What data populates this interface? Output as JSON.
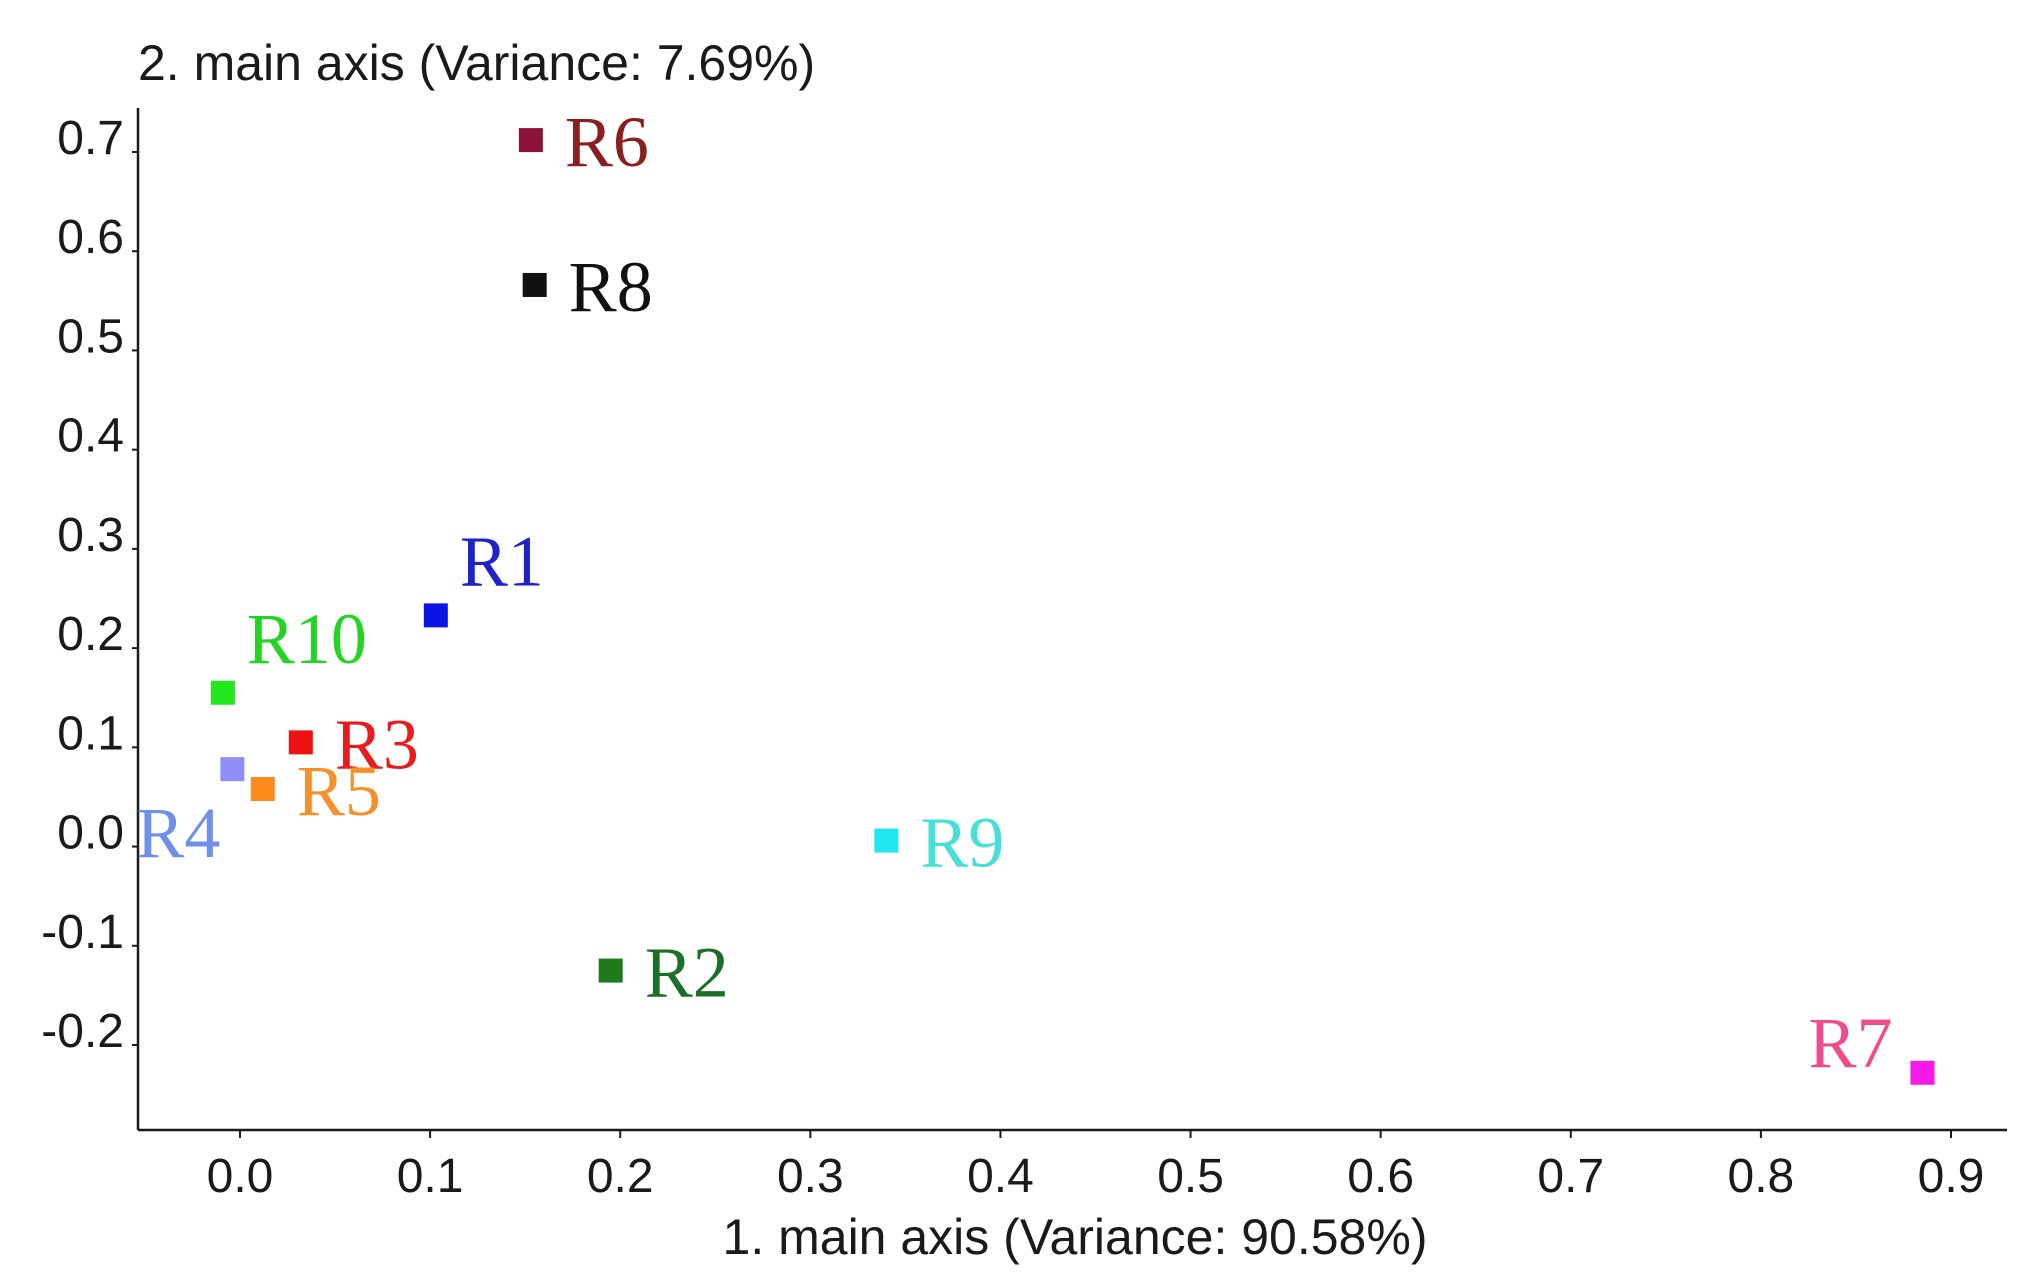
{
  "chart_data": {
    "type": "scatter",
    "title": "",
    "xlabel": "1. main axis (Variance: 90.58%)",
    "ylabel": "2. main axis (Variance: 7.69%)",
    "xlim": [
      -0.055,
      0.93
    ],
    "ylim": [
      -0.27,
      0.77
    ],
    "x_ticks": [
      0.0,
      0.1,
      0.2,
      0.3,
      0.4,
      0.5,
      0.6,
      0.7,
      0.8,
      0.9
    ],
    "x_tick_labels": [
      "0.0",
      "0.1",
      "0.2",
      "0.3",
      "0.4",
      "0.5",
      "0.6",
      "0.7",
      "0.8",
      "0.9"
    ],
    "y_ticks": [
      0.7,
      0.6,
      0.5,
      0.4,
      0.3,
      0.2,
      0.1,
      0.0,
      -0.1,
      -0.2
    ],
    "y_tick_labels": [
      "0.7",
      "0.6",
      "0.5",
      "0.4",
      "0.3",
      "0.2",
      "0.1",
      "0.0",
      "-0.1",
      "-0.2"
    ],
    "grid": false,
    "legend": "none",
    "points": [
      {
        "label": "R1",
        "x": 0.103,
        "y": 0.233,
        "marker_color": "#0a14e6",
        "label_color": "#1e22c8",
        "label_pos": "upper-right"
      },
      {
        "label": "R2",
        "x": 0.195,
        "y": -0.125,
        "marker_color": "#1d7a1d",
        "label_color": "#1d6e26",
        "label_pos": "right"
      },
      {
        "label": "R3",
        "x": 0.032,
        "y": 0.105,
        "marker_color": "#f01212",
        "label_color": "#e81c1c",
        "label_pos": "right"
      },
      {
        "label": "R4",
        "x": -0.004,
        "y": 0.078,
        "marker_color": "#8d8df5",
        "label_color": "#6f8fe8",
        "label_pos": "lower-left"
      },
      {
        "label": "R5",
        "x": 0.012,
        "y": 0.058,
        "marker_color": "#ff8a1c",
        "label_color": "#f7902a",
        "label_pos": "right"
      },
      {
        "label": "R6",
        "x": 0.153,
        "y": 0.712,
        "marker_color": "#8c1238",
        "label_color": "#8b1f1f",
        "label_pos": "right"
      },
      {
        "label": "R7",
        "x": 0.885,
        "y": -0.228,
        "marker_color": "#f51ae6",
        "label_color": "#f04c8c",
        "label_pos": "upper-left"
      },
      {
        "label": "R8",
        "x": 0.155,
        "y": 0.566,
        "marker_color": "#111111",
        "label_color": "#111111",
        "label_pos": "right"
      },
      {
        "label": "R9",
        "x": 0.34,
        "y": 0.006,
        "marker_color": "#21e6f0",
        "label_color": "#46e0d6",
        "label_pos": "right"
      },
      {
        "label": "R10",
        "x": -0.009,
        "y": 0.155,
        "marker_color": "#22e81c",
        "label_color": "#24d424",
        "label_pos": "upper-right"
      }
    ]
  }
}
